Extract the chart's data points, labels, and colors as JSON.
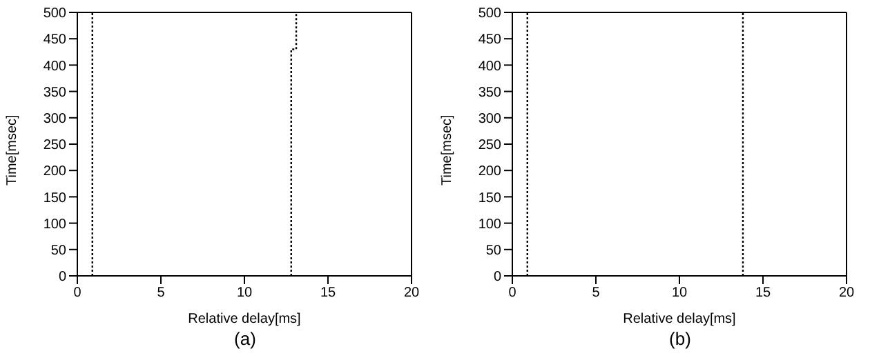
{
  "chart_data": [
    {
      "type": "line",
      "xlabel": "Relative delay[ms]",
      "ylabel": "Time[msec]",
      "xlim": [
        0,
        20
      ],
      "xticks": [
        0,
        5,
        10,
        15,
        20
      ],
      "ylim": [
        0,
        500
      ],
      "yticks": [
        0,
        50,
        100,
        150,
        200,
        250,
        300,
        350,
        400,
        450,
        500
      ],
      "line_style": "dotted",
      "annotations": [
        "(a)"
      ],
      "series": [
        {
          "color": "#000000",
          "x": [
            0.9,
            0.9
          ],
          "values": [
            0,
            500
          ]
        },
        {
          "color": "#000000",
          "x": [
            12.8,
            12.8,
            13.1,
            13.1
          ],
          "values": [
            0,
            430,
            430,
            500
          ]
        }
      ]
    },
    {
      "type": "line",
      "xlabel": "Relative delay[ms]",
      "ylabel": "Time[msec]",
      "xlim": [
        0,
        20
      ],
      "xticks": [
        0,
        5,
        10,
        15,
        20
      ],
      "ylim": [
        0,
        500
      ],
      "yticks": [
        0,
        50,
        100,
        150,
        200,
        250,
        300,
        350,
        400,
        450,
        500
      ],
      "line_style": "dotted",
      "annotations": [
        "(b)"
      ],
      "series": [
        {
          "color": "#000000",
          "x": [
            0.9,
            0.9
          ],
          "values": [
            0,
            500
          ]
        },
        {
          "color": "#000000",
          "x": [
            13.8,
            13.8
          ],
          "values": [
            0,
            500
          ]
        }
      ]
    }
  ]
}
